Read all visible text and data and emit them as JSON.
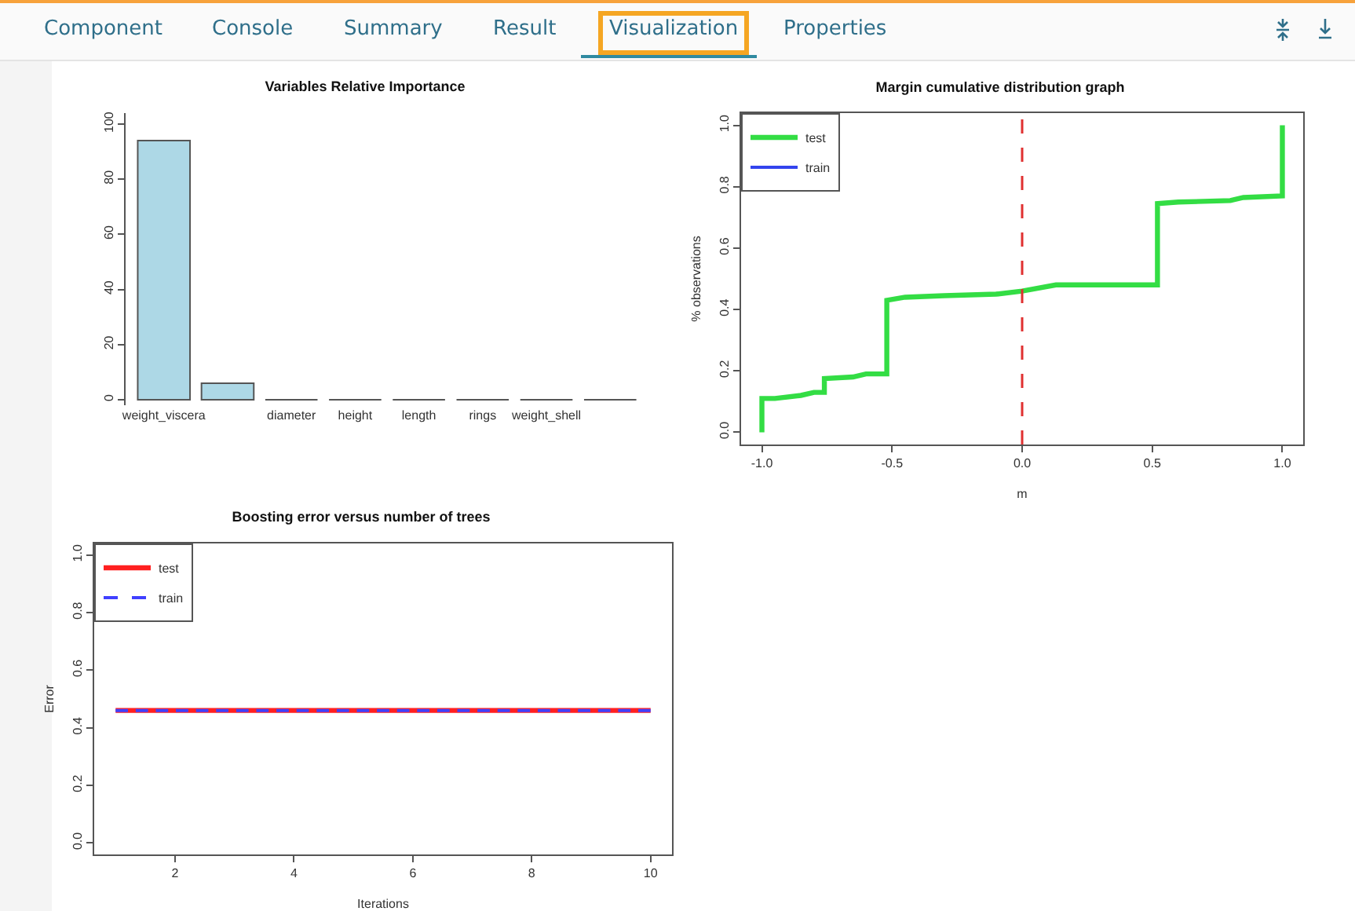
{
  "chart_data": [
    {
      "type": "other",
      "annotations": [
        "Component",
        "Console",
        "Summary",
        "Result",
        "Visualization",
        "Properties"
      ]
    },
    {
      "type": "bar",
      "title": "Variables Relative Importance",
      "categories": [
        "weight_viscera",
        null,
        "diameter",
        "height",
        "length",
        "rings",
        "weight_shell",
        null
      ],
      "values": [
        94,
        6,
        0,
        0,
        0,
        0,
        0,
        0
      ],
      "color": "#add8e6",
      "ylim": [
        -2,
        104
      ],
      "yticks": [
        0,
        20,
        40,
        60,
        80,
        100
      ],
      "grid": false
    },
    {
      "type": "line",
      "title": "Margin cumulative distribution graph",
      "xlabel": "m",
      "ylabel": "% observations",
      "xlim": [
        -1.08,
        1.08
      ],
      "xticks": [
        {
          "value": -1,
          "label": "-1.0"
        },
        {
          "value": -0.5,
          "label": "-0.5"
        },
        {
          "value": 0,
          "label": "0.0"
        },
        {
          "value": 0.5,
          "label": "0.5"
        },
        {
          "value": 1,
          "label": "1.0"
        }
      ],
      "ylim": [
        -0.04,
        1.04
      ],
      "yticks": [
        {
          "value": 0,
          "label": "0.0"
        },
        {
          "value": 0.2,
          "label": "0.2"
        },
        {
          "value": 0.4,
          "label": "0.4"
        },
        {
          "value": 0.6,
          "label": "0.6"
        },
        {
          "value": 0.8,
          "label": "0.8"
        },
        {
          "value": 1,
          "label": "1.0"
        }
      ],
      "grid": false,
      "legend": "top left",
      "marker": "none",
      "line_style": "solid",
      "ref_lines": [
        {
          "axis": "x",
          "value": 0,
          "color": "#e03030",
          "line_style": "dashed"
        }
      ],
      "series": [
        {
          "name": "test",
          "color": "#33dd44",
          "x": [
            -1,
            -1,
            -0.95,
            -0.85,
            -0.8,
            -0.76,
            -0.76,
            -0.65,
            -0.6,
            -0.52,
            -0.52,
            -0.45,
            -0.3,
            -0.1,
            0,
            0.13,
            0.52,
            0.52,
            0.6,
            0.8,
            0.85,
            1,
            1
          ],
          "values": [
            0,
            0.11,
            0.11,
            0.12,
            0.13,
            0.13,
            0.175,
            0.18,
            0.19,
            0.19,
            0.43,
            0.44,
            0.445,
            0.45,
            0.46,
            0.48,
            0.48,
            0.745,
            0.75,
            0.755,
            0.765,
            0.77,
            1
          ]
        },
        {
          "name": "train",
          "color": "#3344ee",
          "values": [
            null
          ]
        }
      ]
    },
    {
      "type": "line",
      "title": "Boosting error versus number of trees",
      "xlabel": "Iterations",
      "ylabel": "Error",
      "x": [
        1,
        10
      ],
      "xlim": [
        0.64,
        10.36
      ],
      "xticks": [
        2,
        4,
        6,
        8,
        10
      ],
      "ylim": [
        -0.04,
        1.04
      ],
      "yticks": [
        {
          "value": 0,
          "label": "0.0"
        },
        {
          "value": 0.2,
          "label": "0.2"
        },
        {
          "value": 0.4,
          "label": "0.4"
        },
        {
          "value": 0.6,
          "label": "0.6"
        },
        {
          "value": 0.8,
          "label": "0.8"
        },
        {
          "value": 1,
          "label": "1.0"
        }
      ],
      "grid": false,
      "legend": "top left",
      "marker": "none",
      "series": [
        {
          "name": "test",
          "color": "#ff2020",
          "values": [
            0.46,
            0.46
          ],
          "line_style": "solid"
        },
        {
          "name": "train",
          "color": "#4040ff",
          "values": [
            0.46,
            0.46
          ],
          "line_style": "dashed"
        }
      ]
    }
  ]
}
